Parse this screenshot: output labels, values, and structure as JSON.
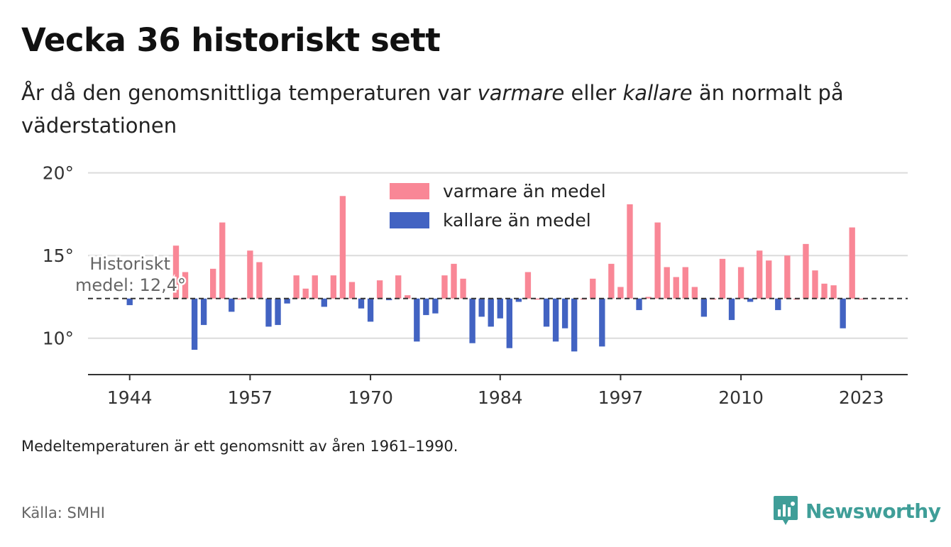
{
  "header": {
    "title": "Vecka 36 historiskt sett",
    "subtitle_part1": "År då den genomsnittliga temperaturen var ",
    "subtitle_warm": "varmare",
    "subtitle_part2": " eller ",
    "subtitle_cold": "kallare",
    "subtitle_part3": " än normalt på väderstationen"
  },
  "footer": {
    "note": "Medeltemperaturen är ett genomsnitt av åren 1961–1990.",
    "source": "Källa: SMHI",
    "brand": "Newsworthy"
  },
  "colors": {
    "warm": "#f98796",
    "cold": "#4263c2",
    "brand": "#3f9e98"
  },
  "chart_data": {
    "type": "bar",
    "baseline": 12.4,
    "baseline_label_line1": "Historiskt",
    "baseline_label_line2": "medel: 12,4°",
    "ylim": [
      7.8,
      20.5
    ],
    "xlim": [
      1939.5,
      2028
    ],
    "y_ticks": [
      10,
      15,
      20
    ],
    "y_tick_labels": [
      "10°",
      "15°",
      "20°"
    ],
    "x_ticks": [
      1944,
      1957,
      1970,
      1984,
      1997,
      2010,
      2023
    ],
    "x_tick_labels": [
      "1944",
      "1957",
      "1970",
      "1984",
      "1997",
      "2010",
      "2023"
    ],
    "grid": true,
    "legend_position": "top",
    "series": [
      {
        "name": "varmare än medel",
        "color": "#f98796"
      },
      {
        "name": "kallare än medel",
        "color": "#4263c2"
      }
    ],
    "years": [
      1944,
      1949,
      1950,
      1951,
      1952,
      1953,
      1954,
      1955,
      1956,
      1957,
      1958,
      1959,
      1960,
      1961,
      1962,
      1963,
      1964,
      1965,
      1966,
      1967,
      1968,
      1969,
      1970,
      1971,
      1972,
      1973,
      1974,
      1975,
      1976,
      1977,
      1978,
      1979,
      1980,
      1981,
      1982,
      1983,
      1984,
      1985,
      1986,
      1987,
      1988,
      1989,
      1990,
      1991,
      1992,
      1993,
      1994,
      1995,
      1996,
      1997,
      1998,
      1999,
      2000,
      2001,
      2002,
      2003,
      2004,
      2005,
      2006,
      2007,
      2008,
      2009,
      2010,
      2011,
      2012,
      2013,
      2014,
      2015,
      2016,
      2017,
      2018,
      2019,
      2020,
      2021,
      2022,
      2023
    ],
    "temperatures": [
      12.0,
      15.6,
      14.0,
      9.3,
      10.8,
      14.2,
      17.0,
      11.6,
      12.4,
      15.3,
      14.6,
      10.7,
      10.8,
      12.1,
      13.8,
      13.0,
      13.8,
      11.9,
      13.8,
      18.6,
      13.4,
      11.8,
      11.0,
      13.5,
      12.3,
      13.8,
      12.6,
      9.8,
      11.4,
      11.5,
      13.8,
      14.5,
      13.6,
      9.7,
      11.3,
      10.7,
      11.2,
      9.4,
      12.2,
      14.0,
      12.4,
      10.7,
      9.8,
      10.6,
      9.2,
      12.4,
      13.6,
      9.5,
      14.5,
      13.1,
      18.1,
      11.7,
      12.5,
      17.0,
      14.3,
      13.7,
      14.3,
      13.1,
      11.3,
      12.4,
      14.8,
      11.1,
      14.3,
      12.2,
      15.3,
      14.7,
      11.7,
      15.0,
      12.4,
      15.7,
      14.1,
      13.3,
      13.2,
      10.6,
      16.7,
      12.4
    ]
  }
}
